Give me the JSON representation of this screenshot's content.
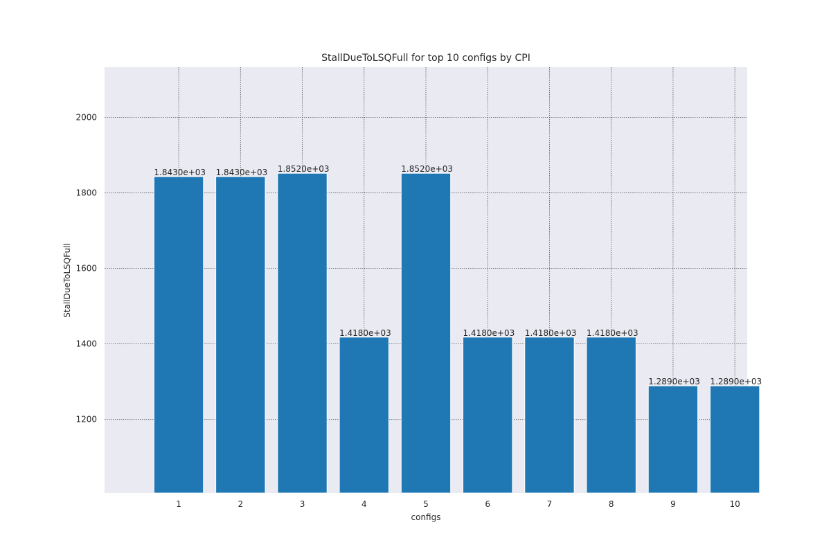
{
  "chart_data": {
    "type": "bar",
    "title": "StallDueToLSQFull for top 10 configs by CPI",
    "xlabel": "configs",
    "ylabel": "StallDueToLSQFull",
    "categories": [
      "1",
      "2",
      "3",
      "4",
      "5",
      "6",
      "7",
      "8",
      "9",
      "10"
    ],
    "values": [
      1843,
      1843,
      1852,
      1418,
      1852,
      1418,
      1418,
      1418,
      1289,
      1289
    ],
    "data_labels": [
      "1.8430e+03",
      "1.8430e+03",
      "1.8520e+03",
      "1.4180e+03",
      "1.8520e+03",
      "1.4180e+03",
      "1.4180e+03",
      "1.4180e+03",
      "1.2890e+03",
      "1.2890e+03"
    ],
    "ylim": [
      1005,
      2133
    ],
    "yticks": [
      1200,
      1400,
      1600,
      1800,
      2000
    ],
    "grid": true,
    "legend": "none",
    "colors": {
      "bar": "#1f77b4",
      "plot_background": "#eaeaf2",
      "grid": "#555555"
    }
  }
}
